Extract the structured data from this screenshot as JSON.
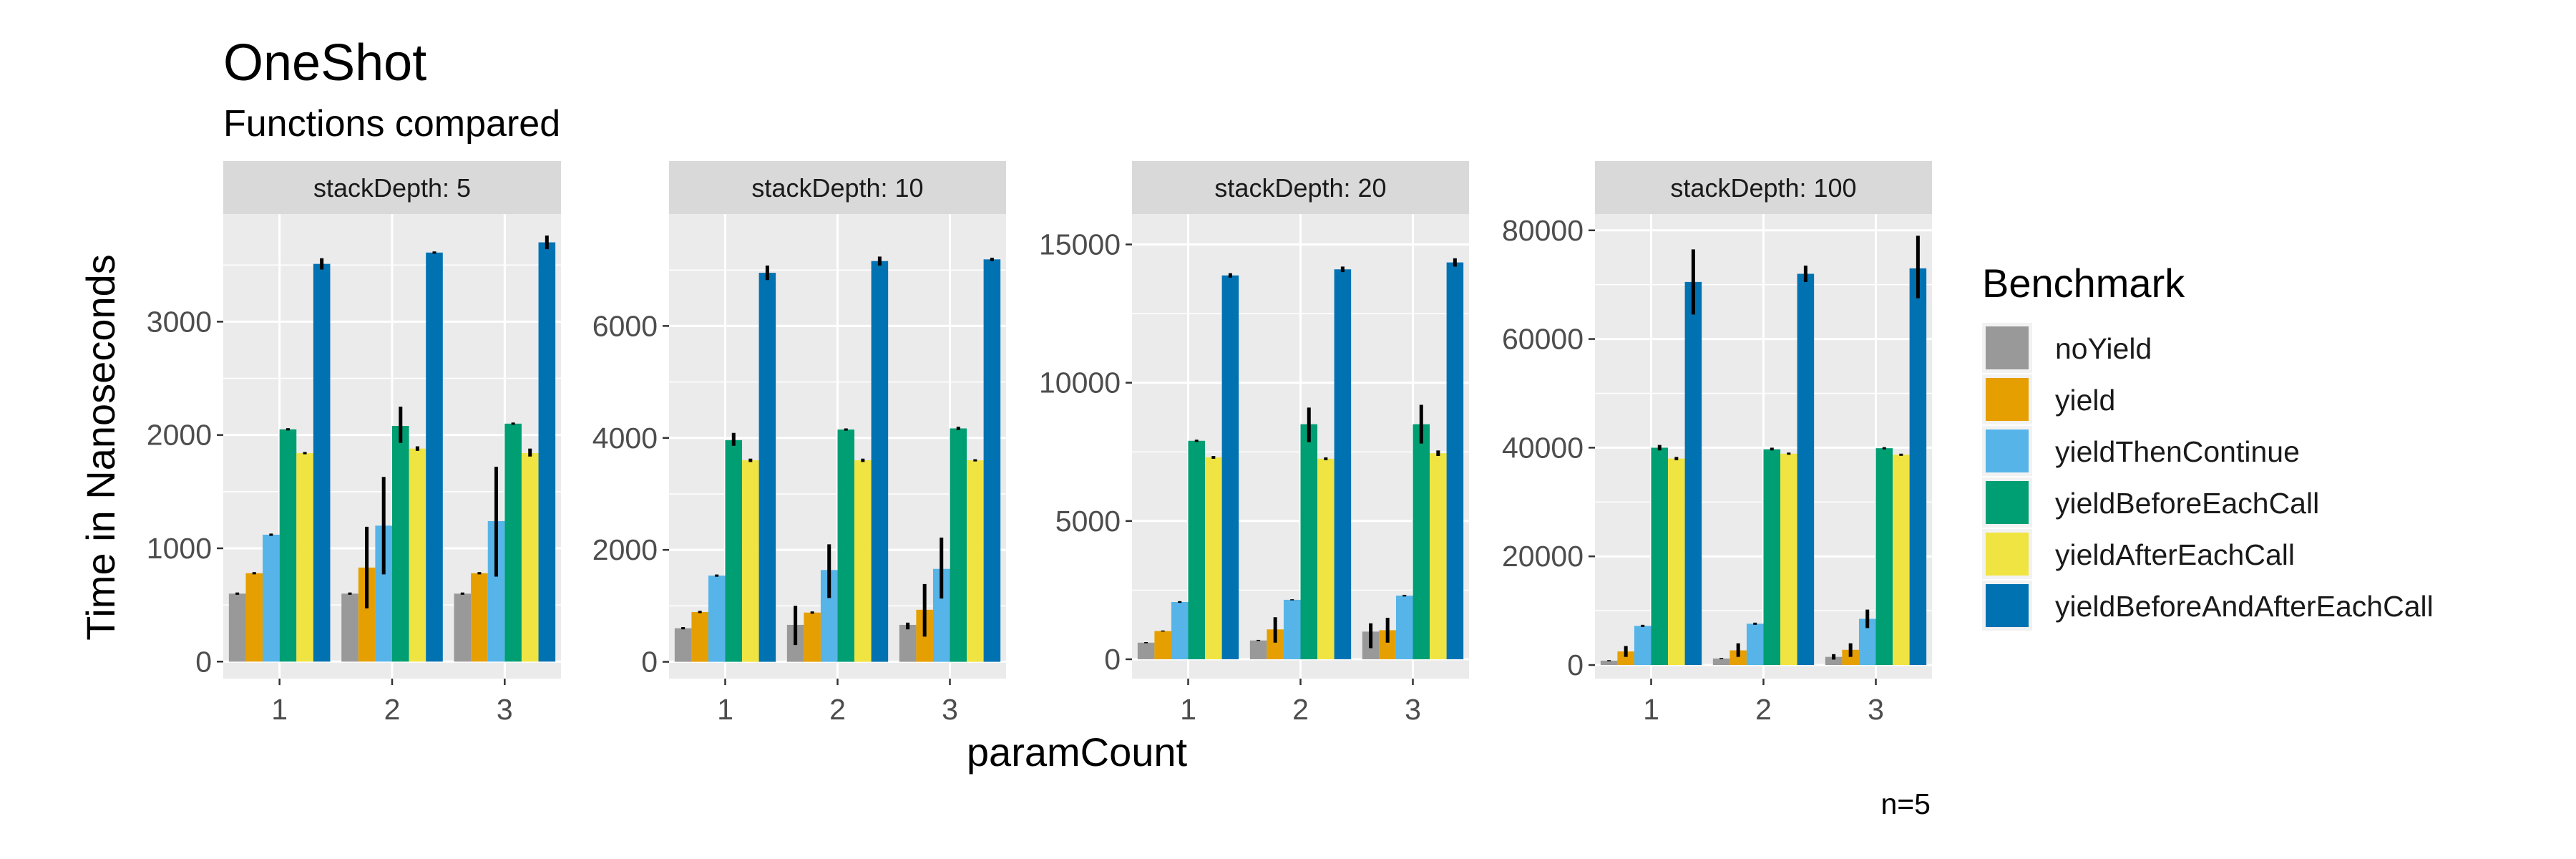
{
  "chart_data": {
    "type": "bar",
    "title": "OneShot",
    "subtitle": "Functions compared",
    "xlabel": "paramCount",
    "ylabel": "Time in Nanoseconds",
    "caption": "n=5",
    "legend_title": "Benchmark",
    "legend_position": "right",
    "grid": true,
    "categories": [
      "1",
      "2",
      "3"
    ],
    "series_names": [
      "noYield",
      "yield",
      "yieldThenContinue",
      "yieldBeforeEachCall",
      "yieldAfterEachCall",
      "yieldBeforeAndAfterEachCall"
    ],
    "colors": [
      "#999999",
      "#E69F00",
      "#56B4E9",
      "#009E73",
      "#F0E442",
      "#0072B2"
    ],
    "panels": [
      {
        "strip": "stackDepth: 5",
        "ylim": [
          -150,
          3950
        ],
        "yticks": [
          0,
          1000,
          2000,
          3000
        ],
        "ytick_labels": [
          "0",
          "1000",
          "2000",
          "3000"
        ],
        "series": [
          {
            "values": [
              600,
              600,
              600
            ],
            "err": [
              [
                590,
                610
              ],
              [
                590,
                610
              ],
              [
                590,
                610
              ]
            ]
          },
          {
            "values": [
              780,
              830,
              780
            ],
            "err": [
              [
                770,
                790
              ],
              [
                470,
                1190
              ],
              [
                770,
                790
              ]
            ]
          },
          {
            "values": [
              1120,
              1200,
              1240
            ],
            "err": [
              [
                1110,
                1130
              ],
              [
                770,
                1630
              ],
              [
                750,
                1720
              ]
            ]
          },
          {
            "values": [
              2050,
              2080,
              2100
            ],
            "err": [
              [
                2040,
                2060
              ],
              [
                1930,
                2250
              ],
              [
                2090,
                2110
              ]
            ]
          },
          {
            "values": [
              1840,
              1880,
              1840
            ],
            "err": [
              [
                1830,
                1850
              ],
              [
                1860,
                1900
              ],
              [
                1810,
                1880
              ]
            ]
          },
          {
            "values": [
              3510,
              3610,
              3700
            ],
            "err": [
              [
                3460,
                3560
              ],
              [
                3600,
                3620
              ],
              [
                3640,
                3760
              ]
            ]
          }
        ]
      },
      {
        "strip": "stackDepth: 10",
        "ylim": [
          -300,
          8000
        ],
        "yticks": [
          0,
          2000,
          4000,
          6000
        ],
        "ytick_labels": [
          "0",
          "2000",
          "4000",
          "6000"
        ],
        "series": [
          {
            "values": [
              600,
              660,
              660
            ],
            "err": [
              [
                580,
                620
              ],
              [
                300,
                1000
              ],
              [
                580,
                700
              ]
            ]
          },
          {
            "values": [
              890,
              880,
              930
            ],
            "err": [
              [
                870,
                910
              ],
              [
                860,
                900
              ],
              [
                450,
                1390
              ]
            ]
          },
          {
            "values": [
              1540,
              1640,
              1660
            ],
            "err": [
              [
                1520,
                1560
              ],
              [
                1140,
                2100
              ],
              [
                1130,
                2220
              ]
            ]
          },
          {
            "values": [
              3960,
              4150,
              4170
            ],
            "err": [
              [
                3860,
                4090
              ],
              [
                4130,
                4170
              ],
              [
                4140,
                4200
              ]
            ]
          },
          {
            "values": [
              3600,
              3600,
              3600
            ],
            "err": [
              [
                3570,
                3630
              ],
              [
                3570,
                3630
              ],
              [
                3580,
                3620
              ]
            ]
          },
          {
            "values": [
              6950,
              7160,
              7190
            ],
            "err": [
              [
                6820,
                7080
              ],
              [
                7080,
                7240
              ],
              [
                7160,
                7220
              ]
            ]
          }
        ]
      },
      {
        "strip": "stackDepth: 20",
        "ylim": [
          -700,
          16100
        ],
        "yticks": [
          0,
          5000,
          10000,
          15000
        ],
        "ytick_labels": [
          "0",
          "5000",
          "10000",
          "15000"
        ],
        "series": [
          {
            "values": [
              600,
              680,
              1000
            ],
            "err": [
              [
                580,
                620
              ],
              [
                660,
                700
              ],
              [
                400,
                1300
              ]
            ]
          },
          {
            "values": [
              1020,
              1080,
              1050
            ],
            "err": [
              [
                1000,
                1040
              ],
              [
                600,
                1520
              ],
              [
                600,
                1500
              ]
            ]
          },
          {
            "values": [
              2070,
              2150,
              2300
            ],
            "err": [
              [
                2040,
                2100
              ],
              [
                2130,
                2170
              ],
              [
                2270,
                2330
              ]
            ]
          },
          {
            "values": [
              7900,
              8500,
              8500
            ],
            "err": [
              [
                7860,
                7940
              ],
              [
                7850,
                9100
              ],
              [
                7800,
                9200
              ]
            ]
          },
          {
            "values": [
              7300,
              7250,
              7450
            ],
            "err": [
              [
                7250,
                7350
              ],
              [
                7200,
                7300
              ],
              [
                7350,
                7550
              ]
            ]
          },
          {
            "values": [
              13880,
              14100,
              14350
            ],
            "err": [
              [
                13800,
                13960
              ],
              [
                14000,
                14200
              ],
              [
                14200,
                14500
              ]
            ]
          }
        ]
      },
      {
        "strip": "stackDepth: 100",
        "ylim": [
          -2500,
          83000
        ],
        "yticks": [
          0,
          20000,
          40000,
          60000,
          80000
        ],
        "ytick_labels": [
          "0",
          "20000",
          "40000",
          "60000",
          "80000"
        ],
        "series": [
          {
            "values": [
              800,
              1200,
              1500
            ],
            "err": [
              [
                700,
                900
              ],
              [
                1100,
                1300
              ],
              [
                1000,
                2000
              ]
            ]
          },
          {
            "values": [
              2500,
              2700,
              2800
            ],
            "err": [
              [
                1500,
                3500
              ],
              [
                1500,
                4000
              ],
              [
                1500,
                4000
              ]
            ]
          },
          {
            "values": [
              7200,
              7600,
              8500
            ],
            "err": [
              [
                7000,
                7400
              ],
              [
                7400,
                7800
              ],
              [
                6800,
                10200
              ]
            ]
          },
          {
            "values": [
              40000,
              39700,
              39900
            ],
            "err": [
              [
                39500,
                40500
              ],
              [
                39500,
                40000
              ],
              [
                39700,
                40100
              ]
            ]
          },
          {
            "values": [
              38000,
              38900,
              38700
            ],
            "err": [
              [
                37700,
                38300
              ],
              [
                38700,
                39100
              ],
              [
                38500,
                38900
              ]
            ]
          },
          {
            "values": [
              70500,
              72000,
              73000
            ],
            "err": [
              [
                64500,
                76500
              ],
              [
                70500,
                73500
              ],
              [
                67500,
                79000
              ]
            ]
          }
        ]
      }
    ]
  }
}
